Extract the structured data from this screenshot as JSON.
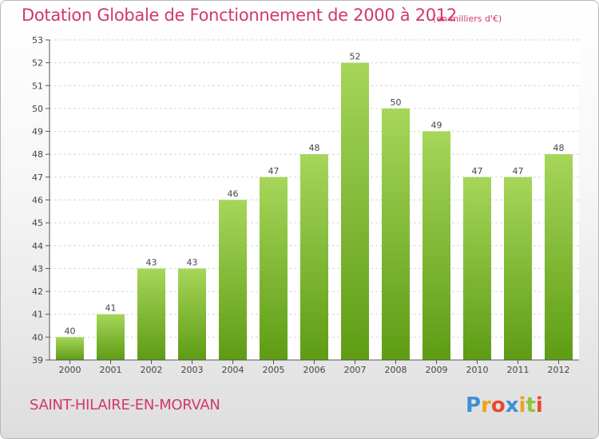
{
  "header": {
    "title": "Dotation Globale de Fonctionnement de 2000 à 2012",
    "unit": "(en milliers d'€)"
  },
  "footer": {
    "commune": "SAINT-HILAIRE-EN-MORVAN",
    "logo_text": "Proxiti"
  },
  "colors": {
    "accent": "#d2386a",
    "bar_light": "#a6d65a",
    "bar_dark": "#5e9c14",
    "grid": "#d6d6d6",
    "axis": "#555555",
    "text": "#444444"
  },
  "chart_data": {
    "type": "bar",
    "title": "Dotation Globale de Fonctionnement de 2000 à 2012",
    "subtitle": "(en milliers d'€)",
    "xlabel": "",
    "ylabel": "",
    "categories": [
      "2000",
      "2001",
      "2002",
      "2003",
      "2004",
      "2005",
      "2006",
      "2007",
      "2008",
      "2009",
      "2010",
      "2011",
      "2012"
    ],
    "values": [
      40,
      41,
      43,
      43,
      46,
      47,
      48,
      52,
      50,
      49,
      47,
      47,
      48
    ],
    "data_labels": [
      "40",
      "41",
      "43",
      "43",
      "46",
      "47",
      "48",
      "52",
      "50",
      "49",
      "47",
      "47",
      "48"
    ],
    "ylim": [
      39,
      53
    ],
    "y_ticks": [
      "39",
      "40",
      "41",
      "42",
      "43",
      "44",
      "45",
      "46",
      "47",
      "48",
      "49",
      "50",
      "51",
      "52",
      "53"
    ],
    "grid": true,
    "legend": "none"
  }
}
